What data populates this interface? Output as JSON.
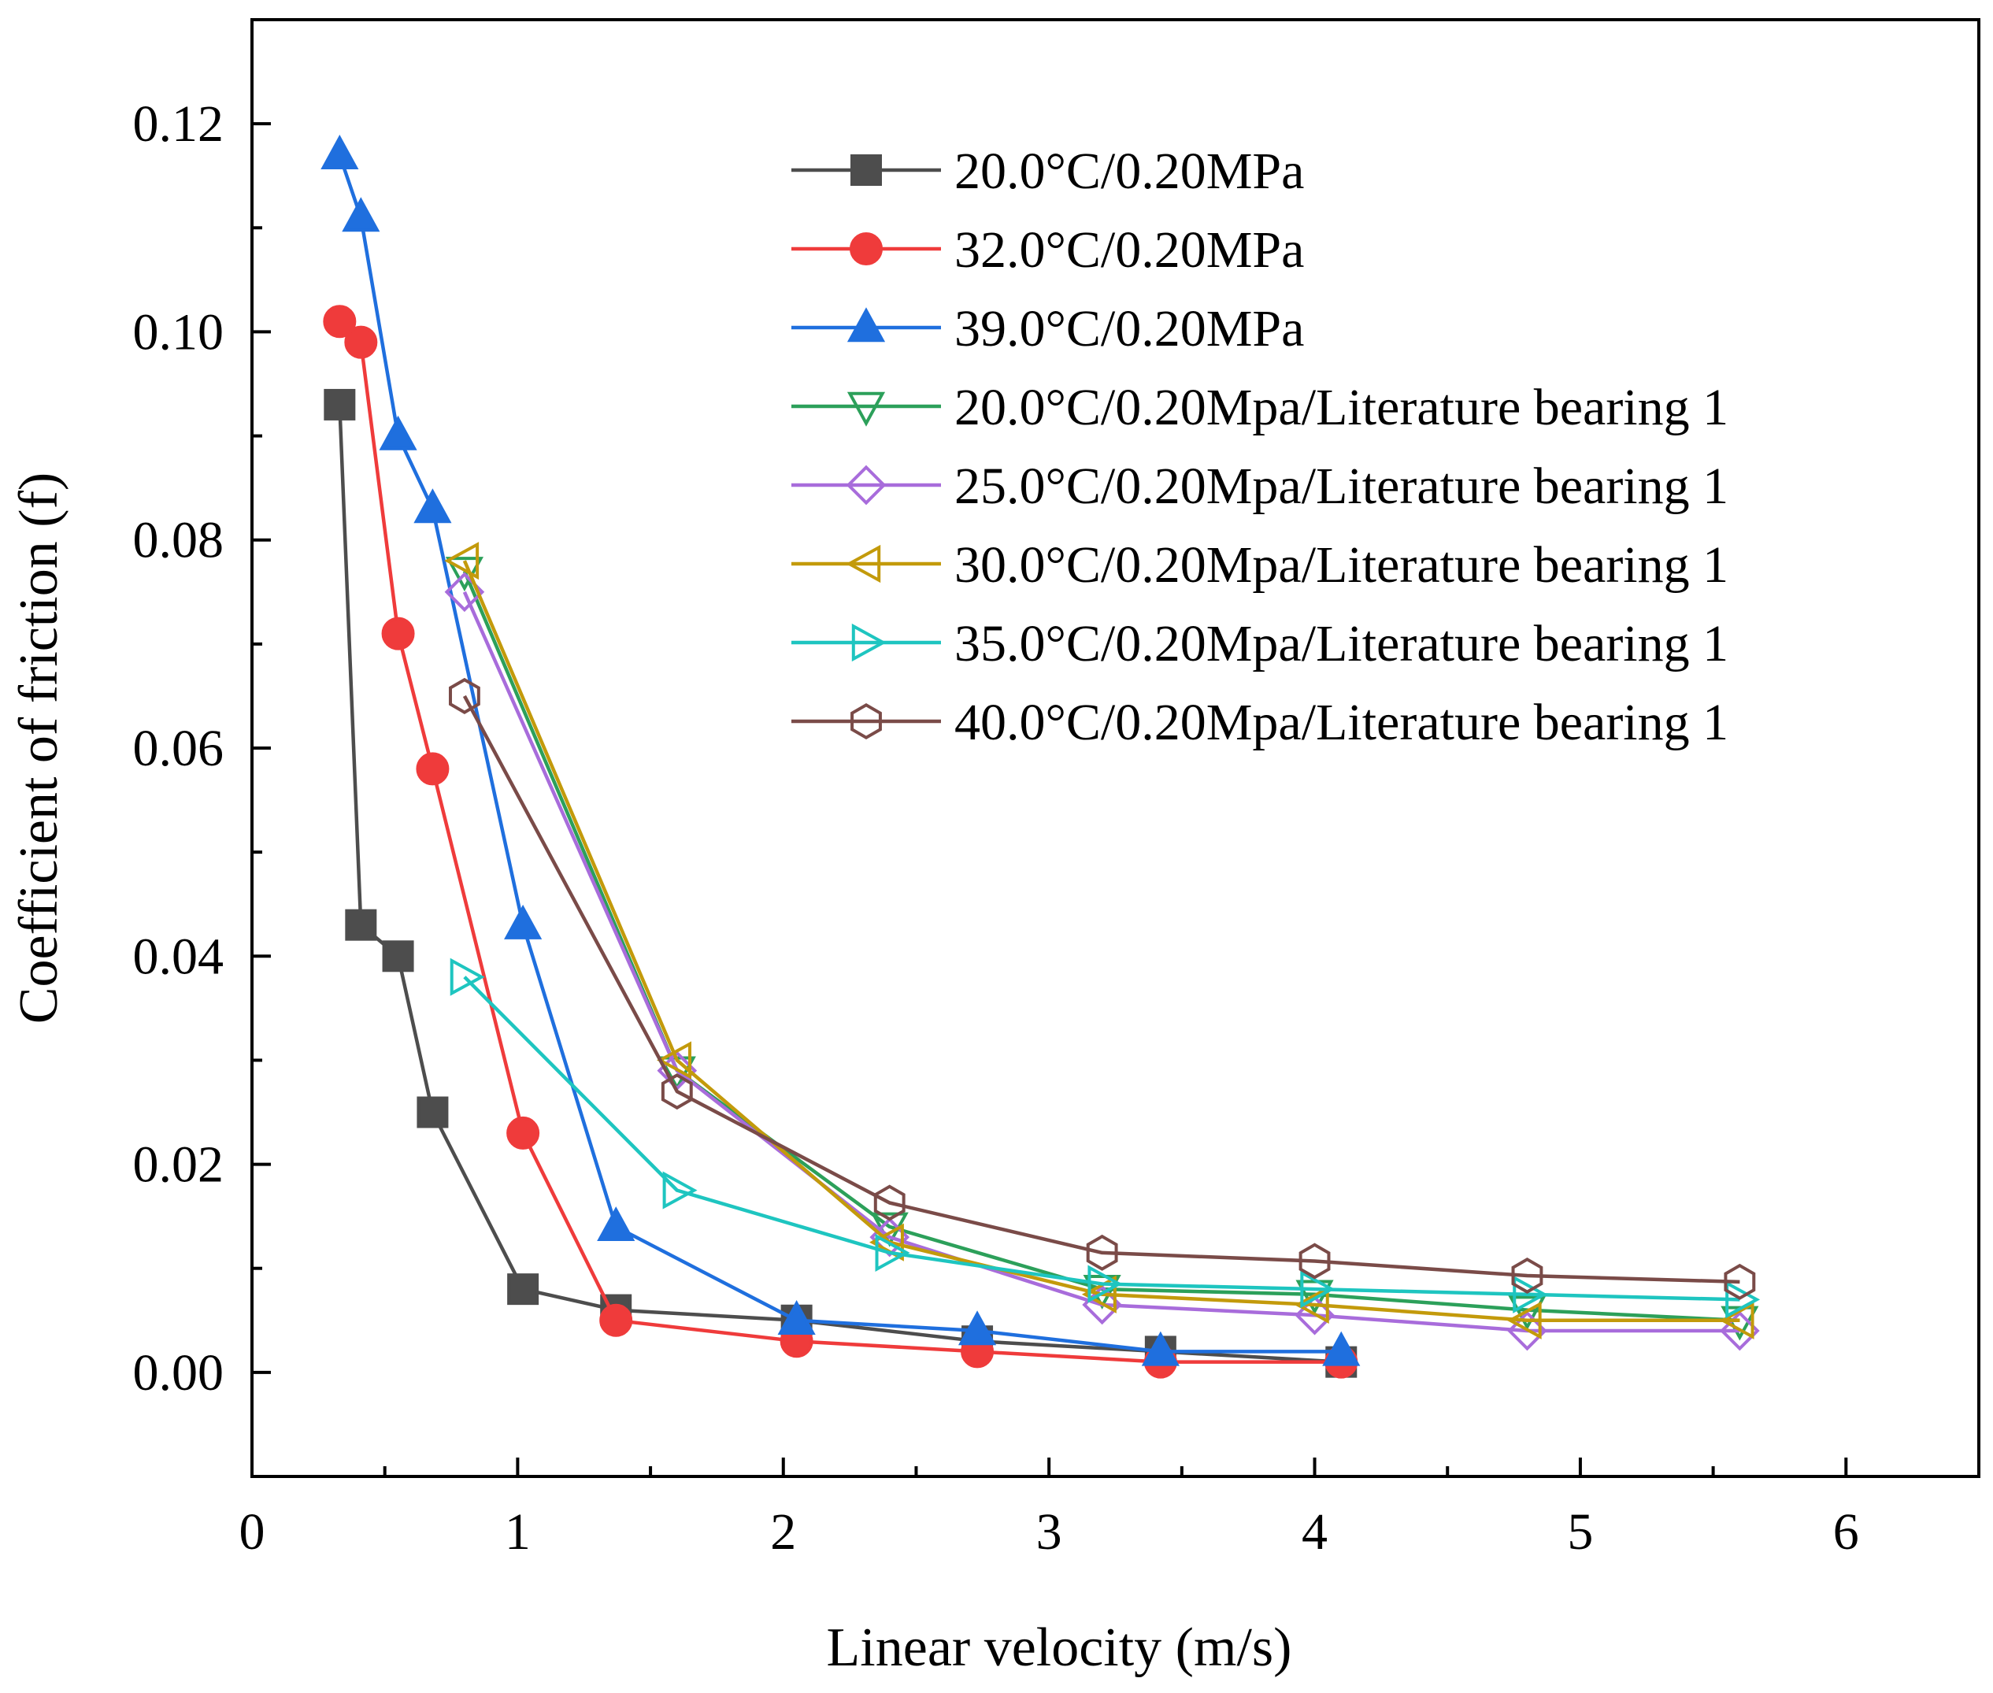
{
  "chart_data": {
    "type": "line",
    "xlabel": "Linear velocity (m/s)",
    "ylabel": "Coefficient of friction (f)",
    "xlim": [
      0,
      6.5
    ],
    "ylim": [
      -0.01,
      0.13
    ],
    "xticks": [
      0,
      1,
      2,
      3,
      4,
      5,
      6
    ],
    "xtick_labels": [
      "0",
      "1",
      "2",
      "3",
      "4",
      "5",
      "6"
    ],
    "yticks": [
      0.0,
      0.02,
      0.04,
      0.06,
      0.08,
      0.1,
      0.12
    ],
    "ytick_labels": [
      "0.00",
      "0.02",
      "0.04",
      "0.06",
      "0.08",
      "0.10",
      "0.12"
    ],
    "legend_position": "top-right",
    "grid": false,
    "series": [
      {
        "name": "20.0°C/0.20MPa",
        "color": "#4d4d4d",
        "marker": "square",
        "filled": true,
        "x": [
          0.33,
          0.41,
          0.55,
          0.68,
          1.02,
          1.37,
          2.05,
          2.73,
          3.42,
          4.1
        ],
        "y": [
          0.093,
          0.043,
          0.04,
          0.025,
          0.008,
          0.006,
          0.005,
          0.003,
          0.002,
          0.001
        ]
      },
      {
        "name": "32.0°C/0.20MPa",
        "color": "#ef3b3b",
        "marker": "circle",
        "filled": true,
        "x": [
          0.33,
          0.41,
          0.55,
          0.68,
          1.02,
          1.37,
          2.05,
          2.73,
          3.42,
          4.1
        ],
        "y": [
          0.101,
          0.099,
          0.071,
          0.058,
          0.023,
          0.005,
          0.003,
          0.002,
          0.001,
          0.001
        ]
      },
      {
        "name": "39.0°C/0.20MPa",
        "color": "#1f6fde",
        "marker": "triangle-up",
        "filled": true,
        "x": [
          0.33,
          0.41,
          0.55,
          0.68,
          1.02,
          1.37,
          2.05,
          2.73,
          3.42,
          4.1
        ],
        "y": [
          0.117,
          0.111,
          0.09,
          0.083,
          0.043,
          0.014,
          0.005,
          0.004,
          0.002,
          0.002
        ]
      },
      {
        "name": "20.0°C/0.20Mpa/Literature bearing 1",
        "color": "#2ca05a",
        "marker": "triangle-down",
        "filled": false,
        "x": [
          0.8,
          1.6,
          2.4,
          3.2,
          4.0,
          4.8,
          5.6
        ],
        "y": [
          0.077,
          0.029,
          0.014,
          0.008,
          0.0075,
          0.006,
          0.005
        ]
      },
      {
        "name": "25.0°C/0.20Mpa/Literature bearing 1",
        "color": "#a86cdb",
        "marker": "diamond",
        "filled": false,
        "x": [
          0.8,
          1.6,
          2.4,
          3.2,
          4.0,
          4.8,
          5.6
        ],
        "y": [
          0.075,
          0.029,
          0.013,
          0.0065,
          0.0055,
          0.004,
          0.004
        ]
      },
      {
        "name": "30.0°C/0.20Mpa/Literature bearing 1",
        "color": "#c39a0b",
        "marker": "triangle-left",
        "filled": false,
        "x": [
          0.8,
          1.6,
          2.4,
          3.2,
          4.0,
          4.8,
          5.6
        ],
        "y": [
          0.078,
          0.03,
          0.0125,
          0.0075,
          0.0065,
          0.005,
          0.005
        ]
      },
      {
        "name": "35.0°C/0.20Mpa/Literature bearing 1",
        "color": "#1ec5c0",
        "marker": "triangle-right",
        "filled": false,
        "x": [
          0.8,
          1.6,
          2.4,
          3.2,
          4.0,
          4.8,
          5.6
        ],
        "y": [
          0.038,
          0.0175,
          0.0115,
          0.0085,
          0.008,
          0.0075,
          0.007
        ]
      },
      {
        "name": "40.0°C/0.20Mpa/Literature bearing 1",
        "color": "#7a4b48",
        "marker": "hexagon",
        "filled": false,
        "x": [
          0.8,
          1.6,
          2.4,
          3.2,
          4.0,
          4.8,
          5.6
        ],
        "y": [
          0.065,
          0.027,
          0.0163,
          0.0115,
          0.0107,
          0.0093,
          0.0087
        ]
      }
    ]
  }
}
